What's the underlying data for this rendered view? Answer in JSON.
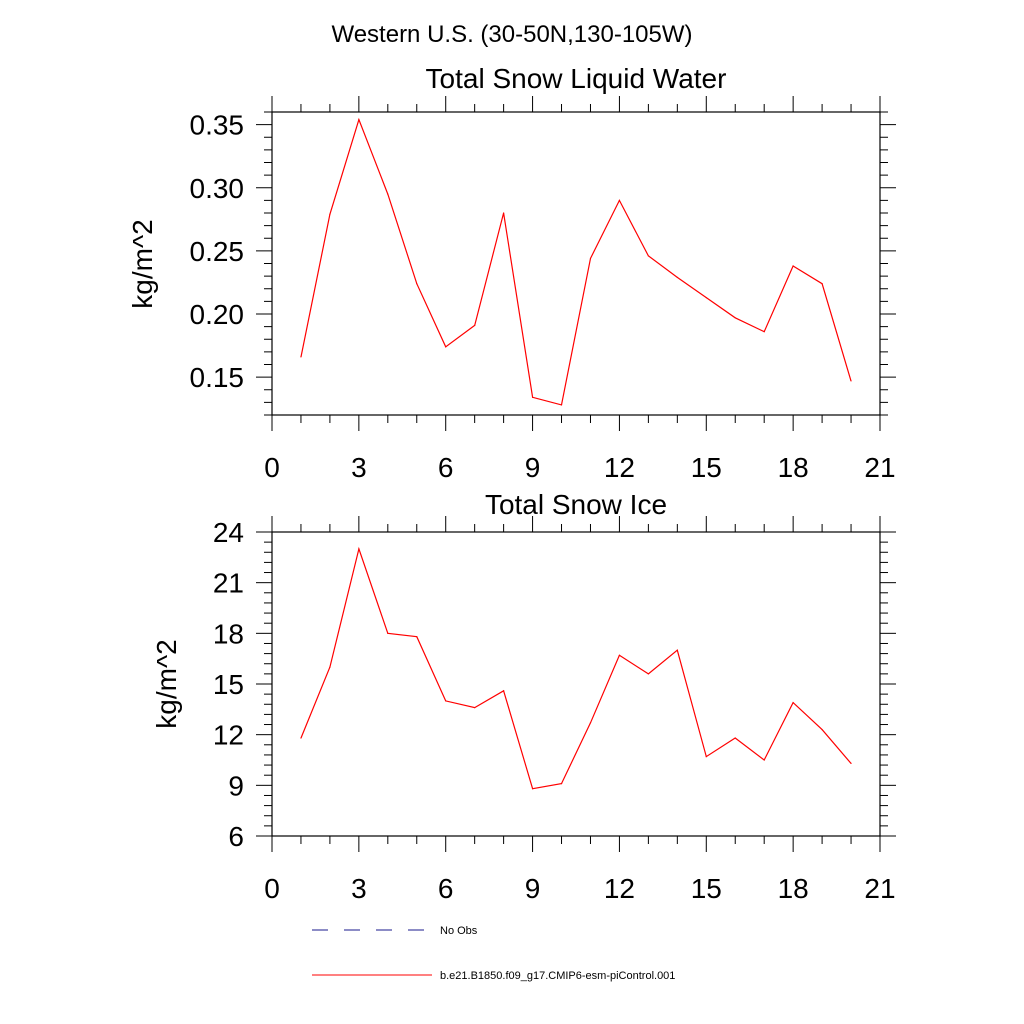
{
  "figure": {
    "title": "Western U.S. (30-50N,130-105W)"
  },
  "chart_data": [
    {
      "type": "line",
      "title": "Total Snow Liquid Water",
      "ylabel": "kg/m^2",
      "xlabel": "",
      "xlim": [
        0,
        21
      ],
      "ylim": [
        0.12,
        0.36
      ],
      "xticks": [
        0,
        3,
        6,
        9,
        12,
        15,
        18,
        21
      ],
      "xtick_labels": [
        "0",
        "3",
        "6",
        "9",
        "12",
        "15",
        "18",
        "21"
      ],
      "yticks": [
        0.15,
        0.2,
        0.25,
        0.3,
        0.35
      ],
      "ytick_labels": [
        "0.15",
        "0.20",
        "0.25",
        "0.30",
        "0.35"
      ],
      "grid": false,
      "x": [
        1,
        2,
        3,
        4,
        5,
        6,
        7,
        8,
        9,
        10,
        11,
        12,
        13,
        14,
        15,
        16,
        17,
        18,
        19,
        20
      ],
      "series": [
        {
          "name": "b.e21.B1850.f09_g17.CMIP6-esm-piControl.001",
          "color": "#ff0000",
          "values": [
            0.166,
            0.279,
            0.354,
            0.295,
            0.224,
            0.174,
            0.191,
            0.28,
            0.134,
            0.128,
            0.244,
            0.29,
            0.246,
            0.229,
            0.213,
            0.197,
            0.186,
            0.238,
            0.224,
            0.147
          ]
        }
      ]
    },
    {
      "type": "line",
      "title": "Total Snow Ice",
      "ylabel": "kg/m^2",
      "xlabel": "",
      "xlim": [
        0,
        21
      ],
      "ylim": [
        6,
        24
      ],
      "xticks": [
        0,
        3,
        6,
        9,
        12,
        15,
        18,
        21
      ],
      "xtick_labels": [
        "0",
        "3",
        "6",
        "9",
        "12",
        "15",
        "18",
        "21"
      ],
      "yticks": [
        6,
        9,
        12,
        15,
        18,
        21,
        24
      ],
      "ytick_labels": [
        "6",
        "9",
        "12",
        "15",
        "18",
        "21",
        "24"
      ],
      "grid": false,
      "x": [
        1,
        2,
        3,
        4,
        5,
        6,
        7,
        8,
        9,
        10,
        11,
        12,
        13,
        14,
        15,
        16,
        17,
        18,
        19,
        20
      ],
      "series": [
        {
          "name": "b.e21.B1850.f09_g17.CMIP6-esm-piControl.001",
          "color": "#ff0000",
          "values": [
            11.8,
            16.0,
            23.0,
            18.0,
            17.8,
            14.0,
            13.6,
            14.6,
            8.8,
            9.1,
            12.7,
            16.7,
            15.6,
            17.0,
            10.7,
            11.8,
            10.5,
            13.9,
            12.3,
            10.3
          ]
        }
      ]
    }
  ],
  "legend": {
    "placement": "bottom",
    "entries": [
      {
        "label": "No Obs",
        "style": "dashed",
        "color": "#1a1a8c"
      },
      {
        "label": "b.e21.B1850.f09_g17.CMIP6-esm-piControl.001",
        "style": "solid",
        "color": "#ff0000"
      }
    ]
  }
}
